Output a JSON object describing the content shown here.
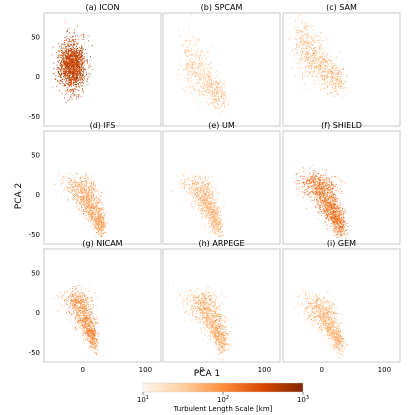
{
  "chart_data": {
    "type": "scatter",
    "xlabel": "PCA 1",
    "ylabel": "PCA 2",
    "xlim": [
      -62,
      125
    ],
    "ylim": [
      -62,
      80
    ],
    "xticks": [
      0,
      100
    ],
    "yticks": [
      50,
      0,
      -50
    ],
    "colorbar": {
      "label": "Turbulent Length Scale [km]",
      "scale": "log",
      "range": [
        10,
        1000
      ],
      "ticks": [
        "10^1",
        "10^2",
        "10^3"
      ],
      "colors": [
        "#fff5eb",
        "#fdd0a2",
        "#fd8d3c",
        "#d94801",
        "#7f2704"
      ]
    },
    "panels": [
      {
        "title": "(a) ICON",
        "shape": "blob",
        "cx": -18,
        "cy": 15,
        "rx": 19,
        "ry": 28,
        "density": 1.0,
        "color_level": 0.8
      },
      {
        "title": "(b) SPCAM",
        "shape": "fan",
        "cx": 0,
        "cy": 5,
        "rx": 45,
        "ry": 35,
        "density": 0.55,
        "color_level": 0.25
      },
      {
        "title": "(c) SAM",
        "shape": "fan",
        "cx": -8,
        "cy": 25,
        "rx": 50,
        "ry": 35,
        "density": 0.65,
        "color_level": 0.3
      },
      {
        "title": "(d) IFS",
        "shape": "teardrop",
        "cx": 2,
        "cy": -5,
        "rx": 32,
        "ry": 42,
        "density": 0.75,
        "color_level": 0.4
      },
      {
        "title": "(e) UM",
        "shape": "teardrop",
        "cx": 0,
        "cy": -5,
        "rx": 30,
        "ry": 42,
        "density": 0.7,
        "color_level": 0.32
      },
      {
        "title": "(f) SHIELD",
        "shape": "teardrop",
        "cx": 0,
        "cy": -2,
        "rx": 34,
        "ry": 45,
        "density": 0.95,
        "color_level": 0.55
      },
      {
        "title": "(g) NICAM",
        "shape": "teardrop",
        "cx": -5,
        "cy": 0,
        "rx": 26,
        "ry": 42,
        "density": 0.7,
        "color_level": 0.45
      },
      {
        "title": "(h) ARPEGE",
        "shape": "teardrop",
        "cx": 5,
        "cy": -2,
        "rx": 34,
        "ry": 45,
        "density": 0.75,
        "color_level": 0.35
      },
      {
        "title": "(i) GEM",
        "shape": "teardrop",
        "cx": 0,
        "cy": -5,
        "rx": 32,
        "ry": 40,
        "density": 0.7,
        "color_level": 0.33
      }
    ]
  }
}
